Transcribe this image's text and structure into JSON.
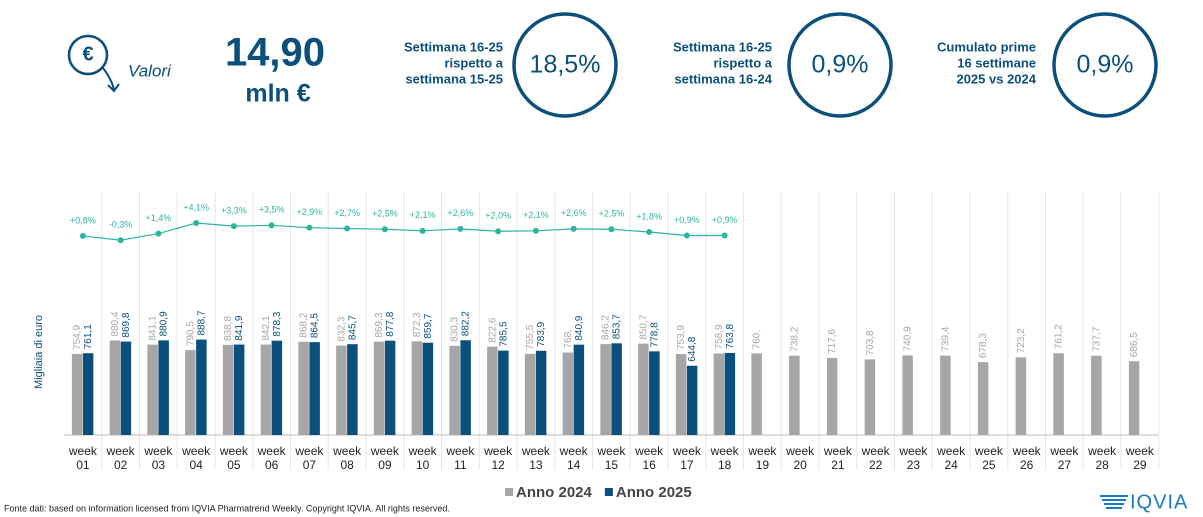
{
  "header": {
    "icon_label": "Valori",
    "value": "14,90",
    "unit": "mln €",
    "kpis": [
      {
        "lines": [
          "Settimana 16-25",
          "rispetto a",
          "settimana 15-25"
        ],
        "value": "18,5%"
      },
      {
        "lines": [
          "Settimana 16-25",
          "rispetto a",
          "settimana 16-24"
        ],
        "value": "0,9%"
      },
      {
        "lines": [
          "Cumulato prime",
          "16 settimane",
          "2025 vs 2024"
        ],
        "value": "0,9%"
      }
    ]
  },
  "chart_data": {
    "type": "bar",
    "y_label": "Migliaia di euro",
    "categories": [
      "week 01",
      "week 02",
      "week 03",
      "week 04",
      "week 05",
      "week 06",
      "week 07",
      "week 08",
      "week 09",
      "week 10",
      "week 11",
      "week 12",
      "week 13",
      "week 14",
      "week 15",
      "week 16",
      "week 17",
      "week 18",
      "week 19",
      "week 20",
      "week 21",
      "week 22",
      "week 23",
      "week 24",
      "week 25",
      "week 26",
      "week 27",
      "week 28",
      "week 29"
    ],
    "ylim": [
      0,
      2700
    ],
    "y2lim": [
      -50,
      24
    ],
    "legend": "bottom",
    "series": [
      {
        "name": "Anno 2024",
        "color": "#a6a6a6",
        "values": [
          754.9,
          880.4,
          841.1,
          790.5,
          838.8,
          842.1,
          868.2,
          832.3,
          869.3,
          872.3,
          830.3,
          822.6,
          755.5,
          768,
          846.2,
          850.7,
          753.9,
          758.9,
          760,
          738.2,
          717.6,
          703.8,
          740.9,
          739.4,
          678.3,
          723.2,
          761.2,
          737.7,
          686.5
        ],
        "value_labels": [
          "754,9",
          "880,4",
          "841,1",
          "790,5",
          "838,8",
          "842,1",
          "868,2",
          "832,3",
          "869,3",
          "872,3",
          "830,3",
          "822,6",
          "755,5",
          "768,",
          "846,2",
          "850,7",
          "753,9",
          "758,9",
          "760,",
          "738,2",
          "717,6",
          "703,8",
          "740,9",
          "739,4",
          "678,3",
          "723,2",
          "761,2",
          "737,7",
          "686,5"
        ]
      },
      {
        "name": "Anno 2025",
        "color": "#0b4f7c",
        "values": [
          761.1,
          869.8,
          880.9,
          888.7,
          841.9,
          878.3,
          864.5,
          845.7,
          877.8,
          859.7,
          882.2,
          785.5,
          783.9,
          840.9,
          853.7,
          778.8,
          644.8,
          763.8,
          null,
          null,
          null,
          null,
          null,
          null,
          null,
          null,
          null,
          null,
          null
        ],
        "value_labels": [
          "761,1",
          "869,8",
          "880,9",
          "888,7",
          "841,9",
          "878,3",
          "864,5",
          "845,7",
          "877,8",
          "859,7",
          "882,2",
          "785,5",
          "783,9",
          "840,9",
          "853,7",
          "778,8",
          "644,8",
          "763,8",
          null,
          null,
          null,
          null,
          null,
          null,
          null,
          null,
          null,
          null,
          null
        ]
      },
      {
        "type": "line",
        "axis": "y2",
        "color": "#2bb5a0",
        "values": [
          0.8,
          -0.3,
          1.4,
          4.1,
          3.3,
          3.5,
          2.9,
          2.7,
          2.5,
          2.1,
          2.6,
          2.0,
          2.1,
          2.6,
          2.5,
          1.8,
          0.9,
          0.9,
          null,
          null,
          null,
          null,
          null,
          null,
          null,
          null,
          null,
          null,
          null
        ],
        "value_labels": [
          "+0,8%",
          "-0,3%",
          "+1,4%",
          "+4,1%",
          "+3,3%",
          "+3,5%",
          "+2,9%",
          "+2,7%",
          "+2,5%",
          "+2,1%",
          "+2,6%",
          "+2,0%",
          "+2,1%",
          "+2,6%",
          "+2,5%",
          "+1,8%",
          "+0,9%",
          "+0,9%",
          null,
          null,
          null,
          null,
          null,
          null,
          null,
          null,
          null,
          null,
          null
        ]
      }
    ]
  },
  "footer": {
    "source": "Fonte dati: based on information licensed from IQVIA Pharmatrend Weekly. Copyright IQVIA. All rights reserved.",
    "logo": "IQVIA"
  }
}
